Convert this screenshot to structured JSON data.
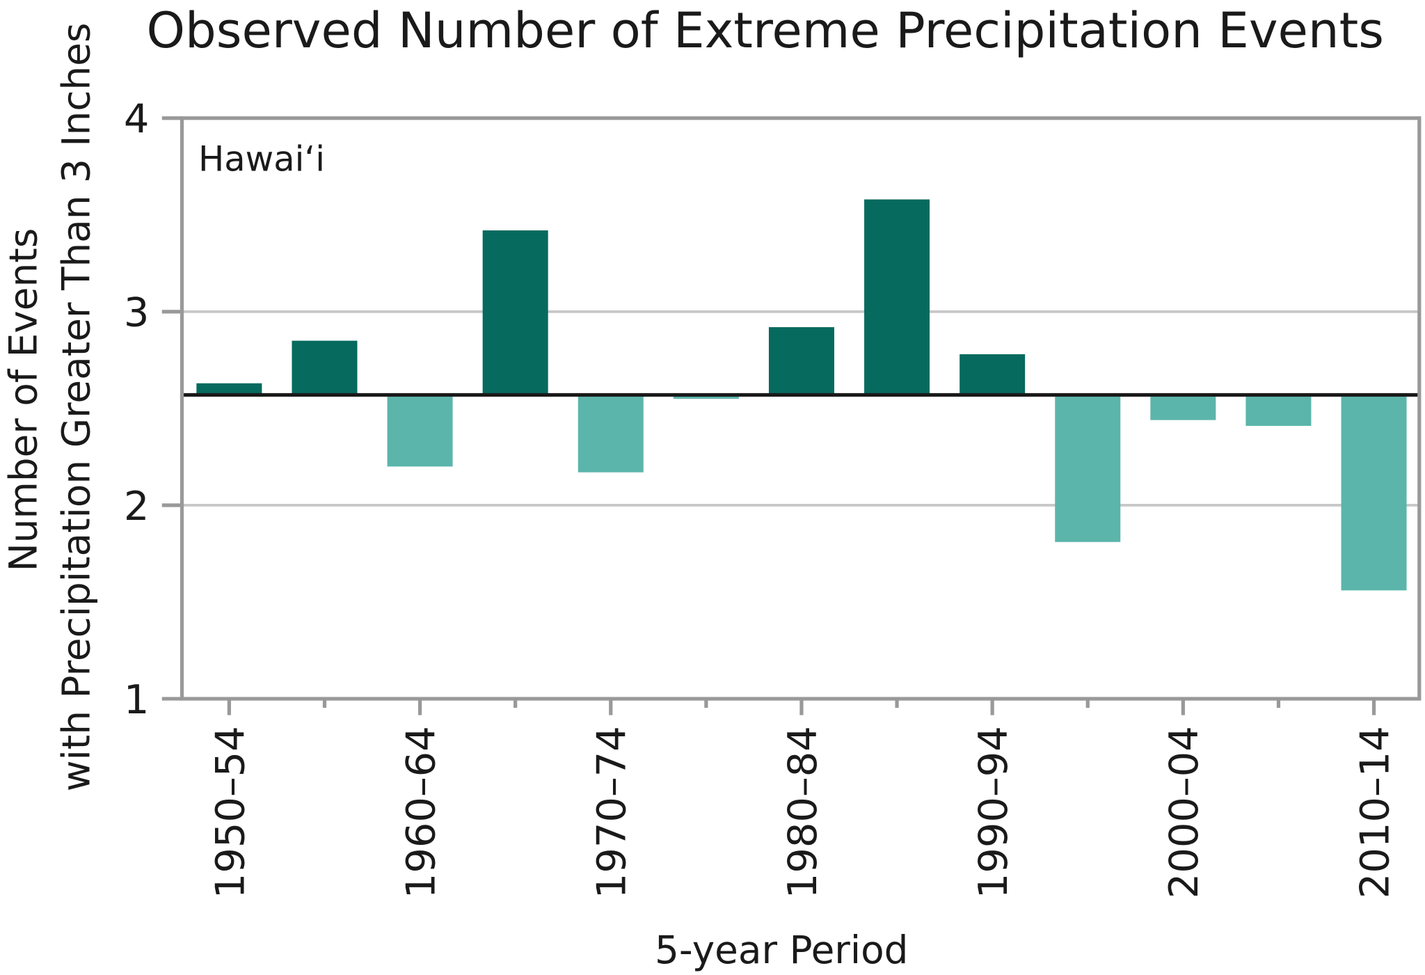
{
  "chart_data": {
    "type": "bar",
    "title": "Observed Number of Extreme Precipitation Events",
    "annotation": "Hawai‘i",
    "xlabel": "5-year Period",
    "ylabel_line1": "Number of Events",
    "ylabel_line2": "with Precipitation Greater Than 3 Inches",
    "ylim": [
      1,
      4
    ],
    "yticks": [
      1,
      2,
      3,
      4
    ],
    "grid": true,
    "baseline": 2.57,
    "period_start_years": [
      1950,
      1955,
      1960,
      1965,
      1970,
      1975,
      1980,
      1985,
      1990,
      1995,
      2000,
      2005,
      2010
    ],
    "values": [
      2.63,
      2.85,
      2.2,
      3.42,
      2.17,
      2.55,
      2.92,
      3.58,
      2.78,
      1.81,
      2.44,
      2.41,
      1.56
    ],
    "tick_labels": [
      "1950–54",
      "1960–64",
      "1970–74",
      "1980–84",
      "1990–94",
      "2000–04",
      "2010–14"
    ],
    "colors": {
      "above": "#076a5e",
      "below": "#5bb5aa",
      "baseline": "#1a1a1a",
      "grid": "#c8c8c8",
      "axis": "#999999",
      "annotation": "#999999"
    }
  }
}
